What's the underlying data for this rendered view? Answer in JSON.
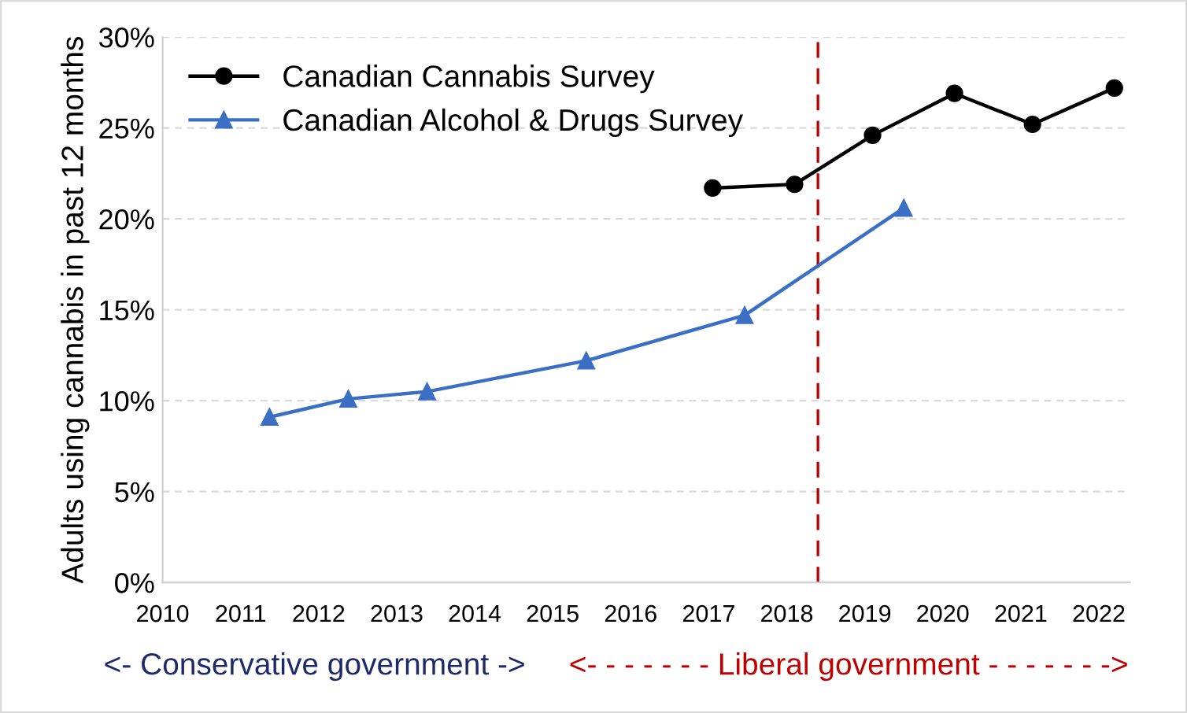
{
  "chart_data": {
    "type": "line",
    "ylabel": "Adults using cannabis in past 12 months",
    "series": [
      {
        "name": "Canadian Cannabis Survey",
        "color": "#000000",
        "marker": "circle",
        "x": [
          2017.05,
          2018.1,
          2019.1,
          2020.15,
          2021.15,
          2022.2
        ],
        "values": [
          21.7,
          21.9,
          24.6,
          26.9,
          25.2,
          27.2
        ]
      },
      {
        "name": "Canadian Alcohol & Drugs Survey",
        "color": "#3a6fc4",
        "marker": "triangle",
        "x": [
          2011.37,
          2012.38,
          2013.39,
          2015.43,
          2017.46,
          2019.5
        ],
        "values": [
          9.1,
          10.1,
          10.5,
          12.2,
          14.7,
          20.6
        ]
      }
    ],
    "xlim": [
      2010,
      2022.4
    ],
    "xticks": [
      2010,
      2011,
      2012,
      2013,
      2014,
      2015,
      2016,
      2017,
      2018,
      2019,
      2020,
      2021,
      2022
    ],
    "ylim": [
      0,
      30
    ],
    "yticks": [
      {
        "value": 0,
        "label": "0%"
      },
      {
        "value": 5,
        "label": "5%"
      },
      {
        "value": 10,
        "label": "10%"
      },
      {
        "value": 15,
        "label": "15%"
      },
      {
        "value": 20,
        "label": "20%"
      },
      {
        "value": 25,
        "label": "25%"
      },
      {
        "value": 30,
        "label": "30%"
      }
    ],
    "ref_lines": [
      {
        "axis": "x",
        "value": 2018.4,
        "label": null,
        "color": "#c00000",
        "line_style": "dashed"
      }
    ],
    "annotations": [
      "<- Conservative government ->",
      "<- - - - - - - Liberal government - - - - - - ->"
    ],
    "grid": "y",
    "legend": "top left",
    "line_style": "solid"
  }
}
